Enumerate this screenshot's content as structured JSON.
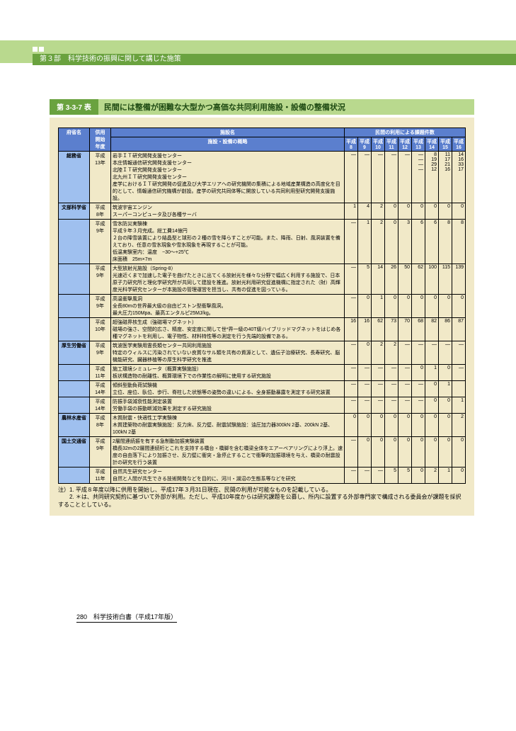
{
  "header": {
    "section": "第３部　科学技術の振興に関して講じた施策"
  },
  "caption": {
    "tag": "第 3-3-7 表",
    "text": "民間には整備が困難な大型かつ高価な共同利用施設・設備の整備状況"
  },
  "table": {
    "head": {
      "ministry": "府省名",
      "year": "供用\n開始\n年度",
      "facility_top": "施設名",
      "facility_sub": "施設・設備の概略",
      "usage_top": "民間の利用による課題件数",
      "year_labels": [
        "平成\n8",
        "平成\n9",
        "平成\n10",
        "平成\n11",
        "平成\n12",
        "平成\n13",
        "平成\n14",
        "平成\n15",
        "平成\n16"
      ]
    },
    "rows": [
      {
        "ministry": "総務省",
        "year": "平成\n13年",
        "facility": "岩手ＩＴ研究開発支援センター\n本庄情報通信研究開発支援センター\n北陸ＩＴ研究開発支援センター\n北九州ＩＴ研究開発支援センター",
        "desc": "産学におけるＩＴ研究開発の促進及び大学エリアへの研究機関の集積による地域産業構造の高度化を目的として、情報通信研究機構が創設。産学の研究共同体等に開放している共同利用型研究開発支援施設。",
        "vals": [
          "—",
          "—",
          "—",
          "—",
          "—",
          "—\n—\n—\n—",
          "8\n19\n29\n12",
          "11\n17\n21\n16",
          "14\n16\n33\n17"
        ]
      },
      {
        "ministry": "文部科学省",
        "year": "平成\n8年",
        "facility": "筑波宇宙エンジン\nスーパーコンピュータ及び各種サーバ",
        "desc": "",
        "vals": [
          "1",
          "4",
          "2",
          "0",
          "0",
          "0",
          "0",
          "0",
          "0"
        ]
      },
      {
        "ministry": "",
        "year": "平成\n9年",
        "facility": "雪氷防災実験棟",
        "desc": "平成９年３月完成。総工費14億円\n２台の降雪装置により結晶型と球形の２種の雪を降らすことが可能。また、降雨、日射、風洞装置を備えており、任意の雪氷現象や雪氷現象を再現することが可能。\n低温実験室内：温度　−30～+25℃\n床面積　25m×7m",
        "vals": [
          "—",
          "1",
          "2",
          "0",
          "3",
          "6",
          "6",
          "8",
          "8"
        ]
      },
      {
        "ministry": "",
        "year": "平成\n9年",
        "facility": "大型放射光施設（Spring-8）",
        "desc": "光速近くまで加速した電子を曲げたときに出てくる放射光を様々な分野で幅広く利用する施設で、日本原子力研究所と理化学研究所が共同して建設を推進。放射光利用研究促進機構に指定された（財）高輝度光科学研究センターが本施設の管理運営を担当し、共有の促進を図っている。",
        "vals": [
          "—",
          "5",
          "14",
          "26",
          "50",
          "62",
          "100",
          "115",
          "139"
        ]
      },
      {
        "ministry": "",
        "year": "平成\n9年",
        "facility": "高温衝撃風洞",
        "desc": "全長80mの世界最大級の自由ピストン型衝撃風洞。\n最大圧力150Mpa、最高エンタルピ25MJ/kg。",
        "vals": [
          "—",
          "0",
          "1",
          "0",
          "0",
          "0",
          "0",
          "0",
          "0"
        ]
      },
      {
        "ministry": "",
        "year": "平成\n10年",
        "facility": "超強磁界核生成（強磁場マグネット）",
        "desc": "磁場の強さ、空間的広さ、精度、安定度に関して世*界一級の40T級ハイブリッドマグネットをはじめ各種マグネットを利用し、電子物性、材料特性等の測定を行う先端的設備である。",
        "vals": [
          "16",
          "16",
          "62",
          "73",
          "70",
          "68",
          "82",
          "86",
          "87"
        ]
      },
      {
        "ministry": "厚生労働省",
        "year": "平成\n9年",
        "facility": "筑波医学実験用霊長類センター共同利用施設",
        "desc": "特定のウィルスに汚染されていない良質なサル類を共有の資源として、遺伝子治療研究、長寿研究、脳機能研究、臓器移植等の厚生科学研究を推進",
        "vals": [
          "—",
          "0",
          "2",
          "2",
          "—",
          "—",
          "—",
          "—",
          "—"
        ]
      },
      {
        "ministry": "",
        "year": "平成\n11年",
        "facility": "施工環境シミュレータ（概算実験施設）",
        "desc": "板状構造物の耐離性、概算環境下での作業性の解明に使用する研究施設",
        "vals": [
          "—",
          "—",
          "—",
          "—",
          "—",
          "0",
          "1",
          "0",
          "—"
        ]
      },
      {
        "ministry": "",
        "year": "平成\n14年",
        "facility": "傾斜型動負荷試験機",
        "desc": "立位、座位、臥位、歩行、脊柱した状態等の姿勢の違いによる、全身振動暴露を測定する研究装置",
        "vals": [
          "—",
          "—",
          "—",
          "—",
          "—",
          "—",
          "0",
          "1",
          ""
        ]
      },
      {
        "ministry": "",
        "year": "平成\n14年",
        "facility": "防振手袋減衰性能測定装置",
        "desc": "労働手袋の振動断減効果を測定する研究施設",
        "vals": [
          "—",
          "—",
          "—",
          "—",
          "—",
          "—",
          "0",
          "0",
          "1"
        ]
      },
      {
        "ministry": "農林水産省",
        "year": "平成\n8年",
        "facility": "木質耐震・快適性工学実験棟",
        "desc": "木質建築物の耐震実験施設：反力床、反力壁、耐震試験施設：油圧加力器300kN 2基、200kN 2基、100kN 2基",
        "vals": [
          "0",
          "0",
          "0",
          "0",
          "0",
          "0",
          "0",
          "0",
          "2"
        ]
      },
      {
        "ministry": "国土交通省",
        "year": "平成\n9年",
        "facility": "2層間連続振を有する急制動加振実験装置",
        "desc": "橋長32mの2層間連続桁とこれを支持する橋台・橋脚を含む橋梁全体をエアーベアリングにより浮上。速度の自由落下により加振させ、反力壁に衝突・急停止することで衝撃的加振環境を与え、橋梁の耐震設計の研究を行う装置",
        "vals": [
          "—",
          "0",
          "0",
          "0",
          "0",
          "0",
          "0",
          "0",
          "0"
        ]
      },
      {
        "ministry": "",
        "year": "平成\n11年",
        "facility": "自然共生研究センター",
        "desc": "自然と人間が共生できる技術開発などを目的に、河川・湖沼の生態系等などを研究",
        "vals": [
          "—",
          "—",
          "—",
          "5",
          "5",
          "0",
          "2",
          "1",
          "0"
        ]
      }
    ]
  },
  "notes": {
    "n1": "注）1. 平成８年度以降に供用を開始し、平成17年３月31日現在、民間の利用が可能なものを記載している。",
    "n2": "　　2. ＊は、共同研究契約に基づいて外部が利用。ただし、平成10年度からは研究課題を公募し、所内に設置する外部専門家で構成される委員会が課題を採択することとしている。"
  },
  "footer": {
    "text": "280　科学技術白書（平成17年版）"
  },
  "colors": {
    "band": "#b9d98e",
    "bar": "#6aa23f",
    "tablebg": "#f1e9c8",
    "th": "#5b7fce",
    "ministrycell": "#9fc0ef"
  }
}
